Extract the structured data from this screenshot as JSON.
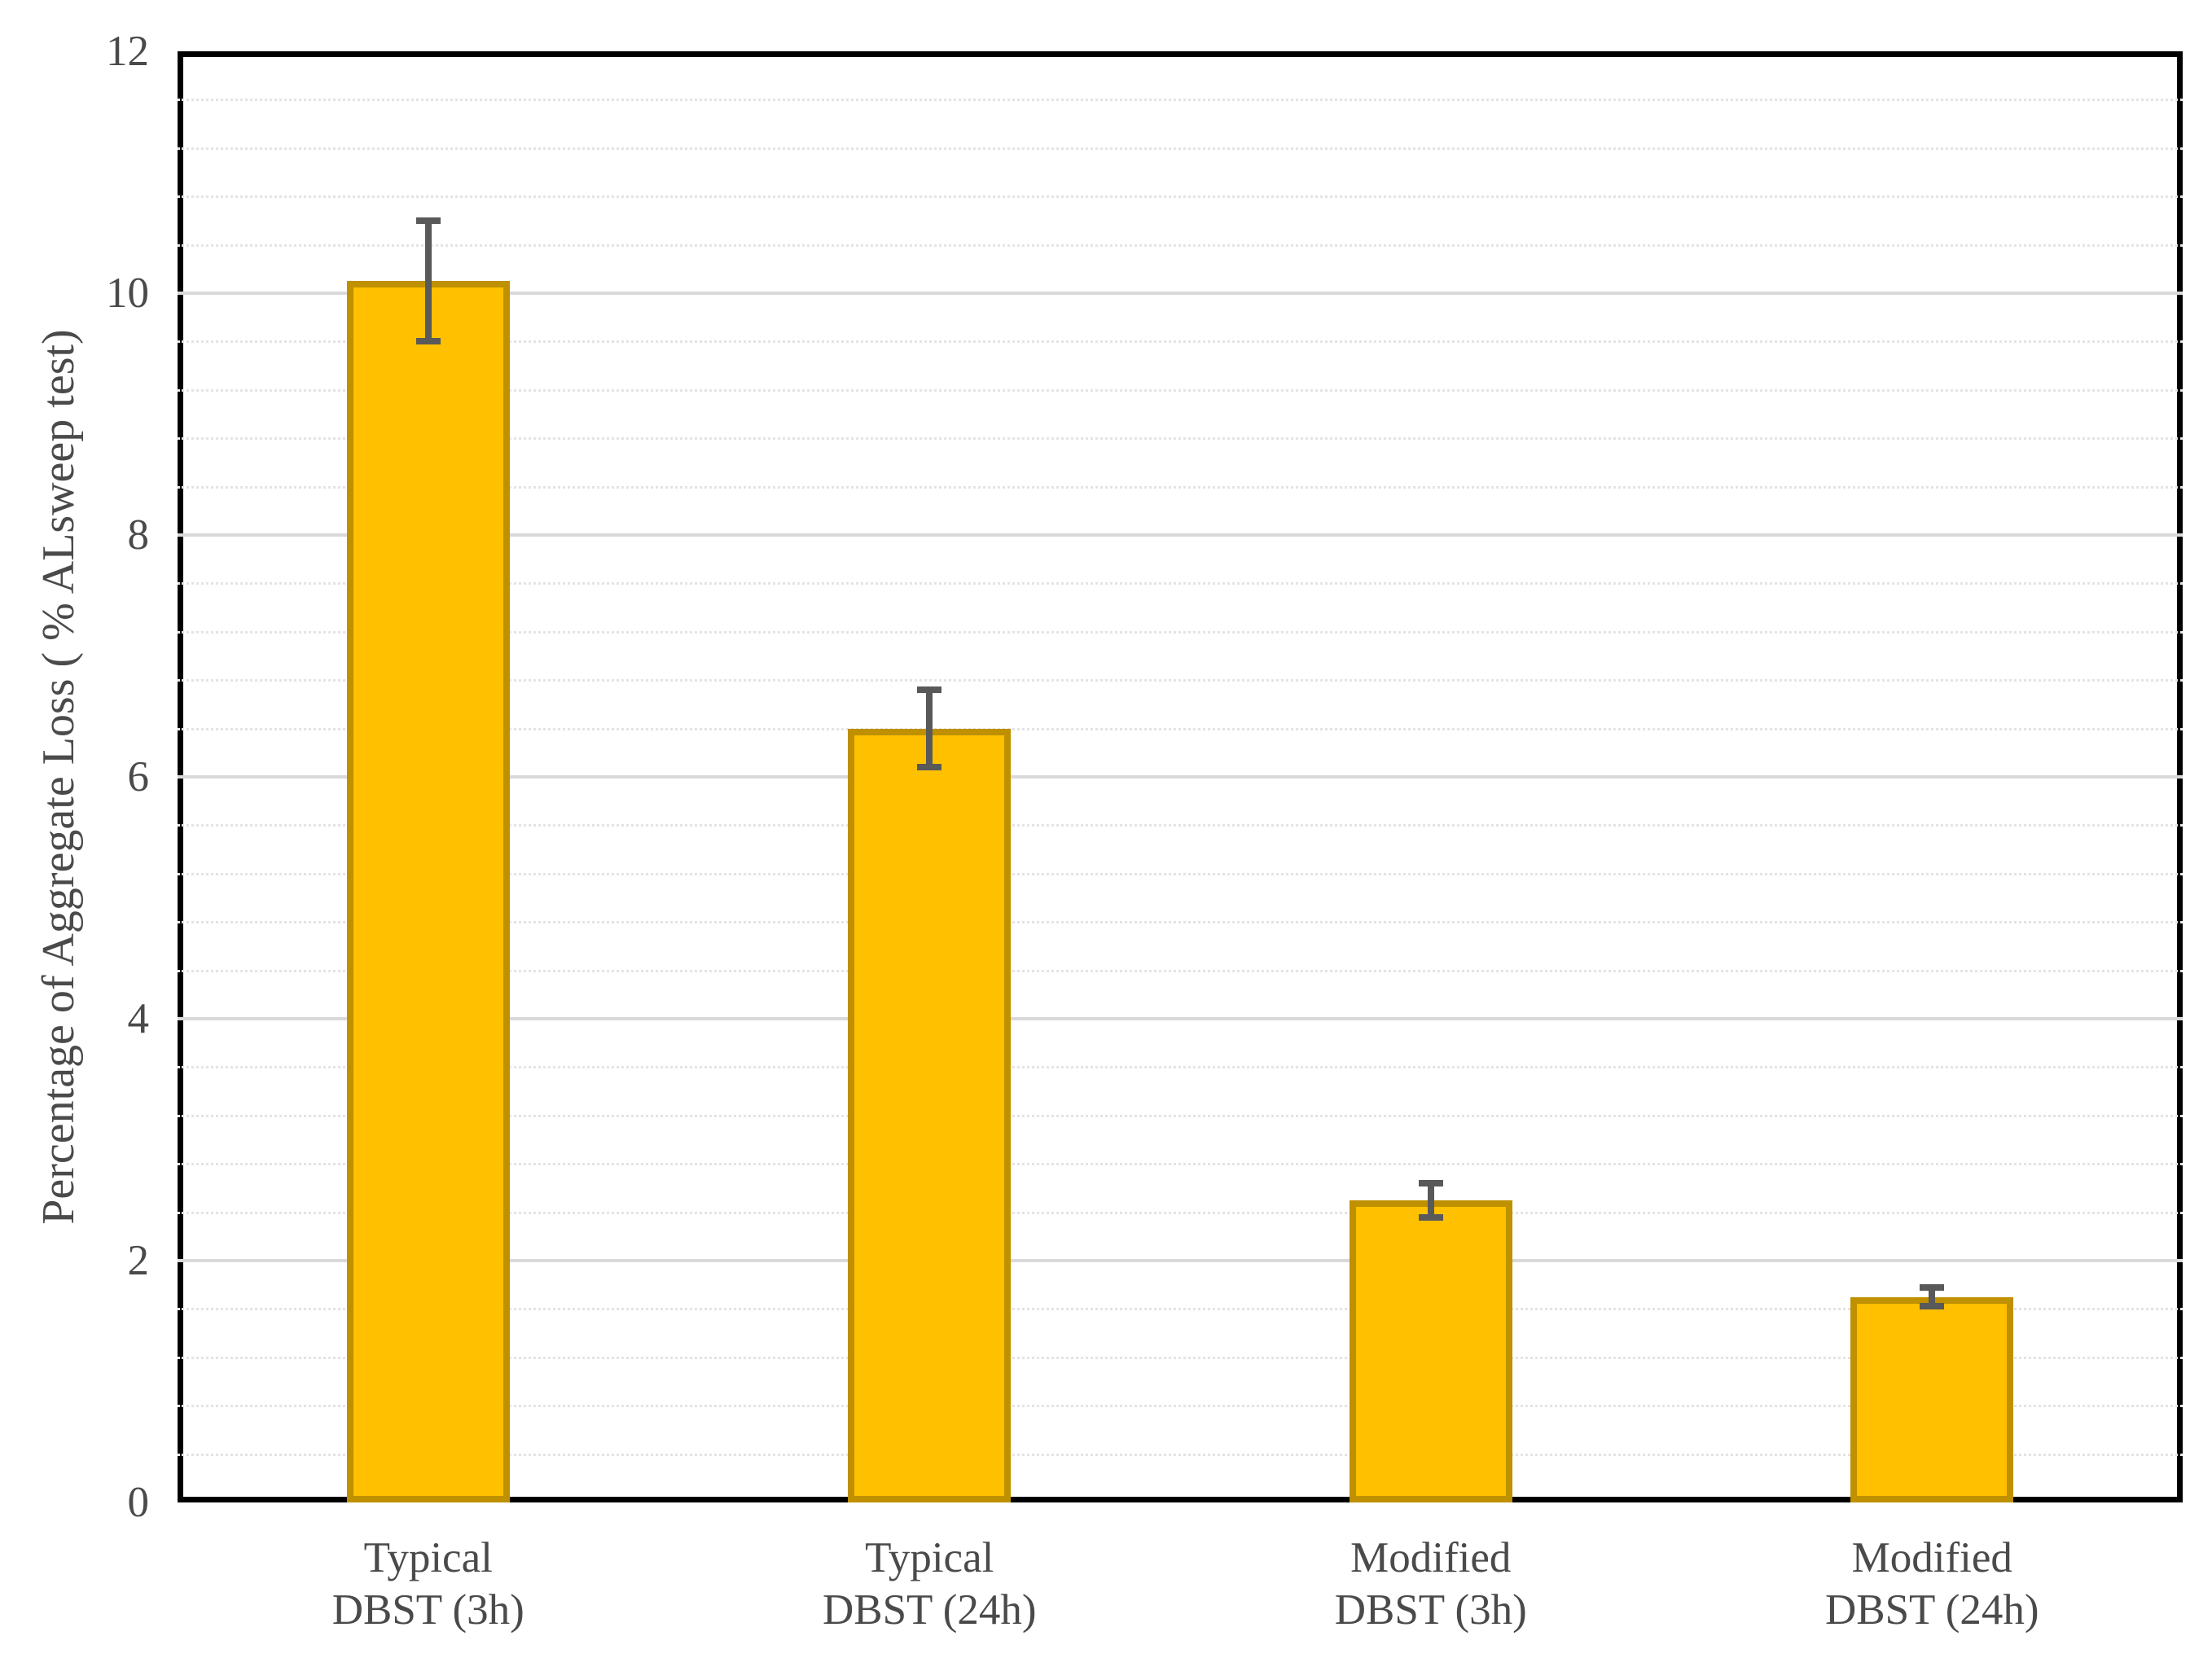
{
  "chart_data": {
    "type": "bar",
    "title": "",
    "categories": [
      "Typical\nDBST (3h)",
      "Typical\nDBST (24h)",
      "Modified\nDBST (3h)",
      "Modified\nDBST (24h)"
    ],
    "values": [
      10.1,
      6.4,
      2.5,
      1.7
    ],
    "error_bars": [
      0.5,
      0.32,
      0.14,
      0.08
    ],
    "xlabel": "",
    "ylabel": "Percentage of Aggregate Loss ( % ALsweep test)",
    "ylim": [
      0,
      12
    ],
    "y_major_step": 2,
    "y_minor_step": 0.4,
    "y_tick_labels": [
      "0",
      "2",
      "4",
      "6",
      "8",
      "10",
      "12"
    ],
    "grid": "major-solid minor-dotted",
    "legend": "none",
    "colors": {
      "bar_fill": "#FFC000",
      "bar_border": "#BF9000",
      "error_bar": "#595959",
      "major_grid": "#D9D9D9",
      "minor_grid": "#E4E4E4",
      "axis_line": "#000000",
      "text": "#4A4A4A",
      "background": "#FFFFFF"
    }
  }
}
